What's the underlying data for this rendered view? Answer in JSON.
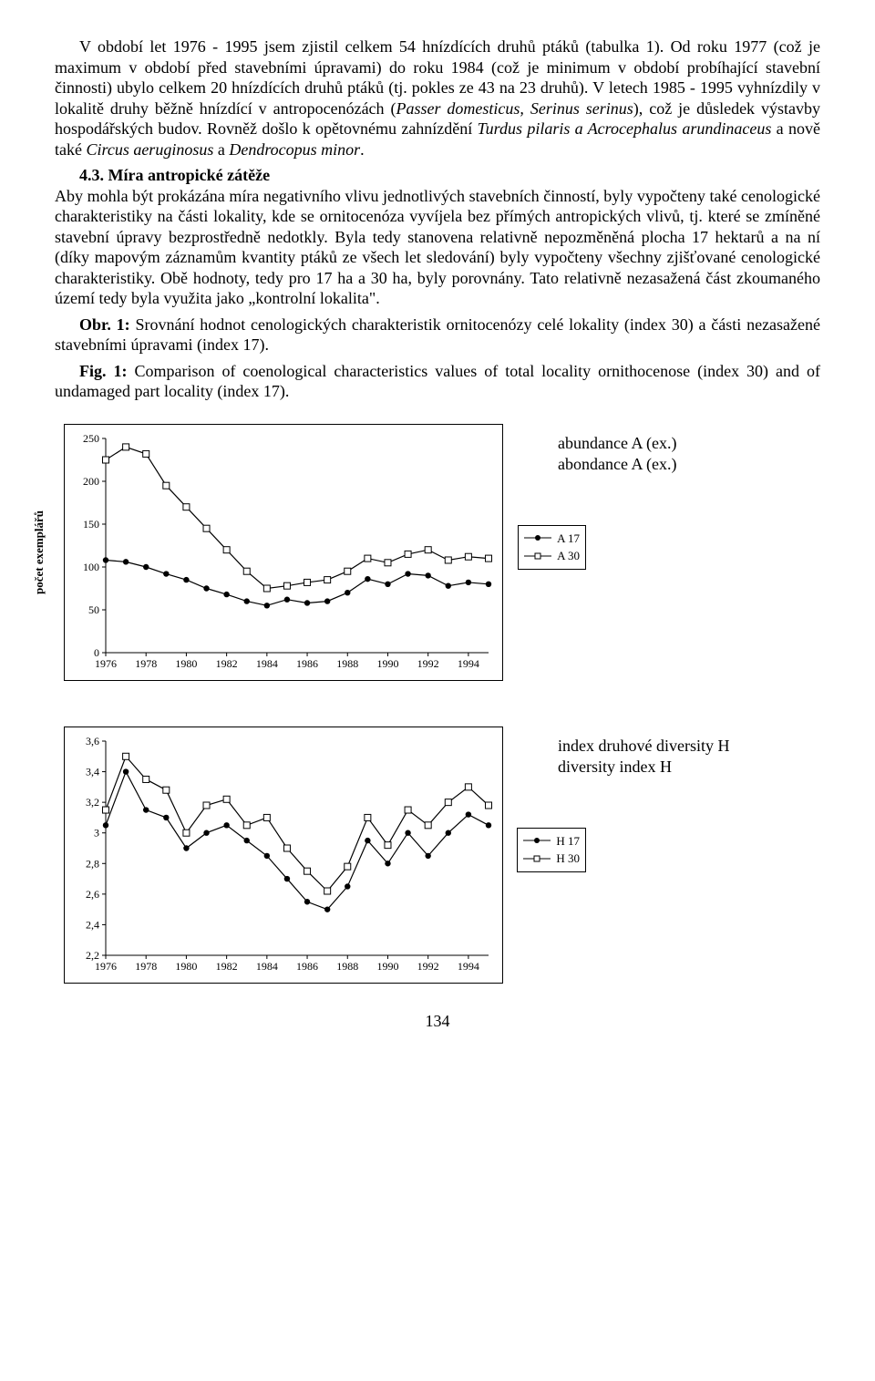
{
  "paragraphs": {
    "p1a": "V období let 1976 - 1995 jsem zjistil celkem 54 hnízdících druhů ptáků (tabulka 1). Od roku 1977 (což je maximum v období před stavebními úpravami) do roku 1984 (což je minimum v období probíhající stavební činnosti) ubylo celkem 20 hnízdících druhů ptáků (tj. pokles ze 43 na 23 druhů). V letech 1985 - 1995 vyhnízdily v lokalitě druhy běžně hnízdící v antropocenózách (",
    "p1b": "Passer domesticus, Serinus serinus",
    "p1c": "), což je důsledek výstavby hospodářských budov. Rovněž došlo k opětovnému zahnízdění ",
    "p1d": "Turdus pilaris a Acrocephalus arundinaceus",
    "p1e": " a nově také ",
    "p1f": "Circus aeruginosus",
    "p1g": " a ",
    "p1h": "Dendrocopus minor",
    "p1i": ".",
    "sec_title": "4.3. Míra antropické zátěže",
    "p2": "Aby mohla být prokázána míra negativního vlivu jednotlivých stavebních činností, byly vypočteny také cenologické charakteristiky na části lokality, kde se ornitocenóza vyvíjela bez přímých antropických vlivů, tj. které se zmíněné stavební úpravy bezprostředně nedotkly. Byla tedy stanovena relativně nepozměněná plocha 17 hektarů a na ní (díky mapovým záznamům kvantity ptáků ze všech let sledování) byly vypočteny všechny zjišťované cenologické charakteristiky. Obě hodnoty, tedy pro 17 ha a 30 ha, byly porovnány. Tato relativně nezasažená část zkoumaného území tedy byla využita jako „kontrolní lokalita\".",
    "obr_label": "Obr. 1:",
    "obr_text": " Srovnání hodnot cenologických charakteristik ornitocenózy celé lokality (index 30) a části nezasažené stavebními úpravami (index 17).",
    "fig_label": "Fig. 1:",
    "fig_text": " Comparison of coenological characteristics values of total locality ornithocenose (index 30) and of undamaged part locality (index 17).",
    "cap1a": "abundance A (ex.)",
    "cap1b": "abondance A (ex.)",
    "cap2a": "index druhové diversity H",
    "cap2b": "diversity index H",
    "page_num": "134"
  },
  "chart1": {
    "type": "line",
    "ylabel": "počet exemplářů",
    "ylim": [
      0,
      250
    ],
    "ytick_step": 50,
    "xticks": [
      1976,
      1978,
      1980,
      1982,
      1984,
      1986,
      1988,
      1990,
      1992,
      1994
    ],
    "years": [
      1976,
      1977,
      1978,
      1979,
      1980,
      1981,
      1982,
      1983,
      1984,
      1985,
      1986,
      1987,
      1988,
      1989,
      1990,
      1991,
      1992,
      1993,
      1994,
      1995
    ],
    "series": [
      {
        "name": "A 17",
        "marker": "circle",
        "color": "#000000",
        "values": [
          108,
          106,
          100,
          92,
          85,
          75,
          68,
          60,
          55,
          62,
          58,
          60,
          70,
          86,
          80,
          92,
          90,
          78,
          82,
          80
        ]
      },
      {
        "name": "A 30",
        "marker": "square",
        "color": "#000000",
        "values": [
          225,
          240,
          232,
          195,
          170,
          145,
          120,
          95,
          75,
          78,
          82,
          85,
          95,
          110,
          105,
          115,
          120,
          108,
          112,
          110
        ]
      }
    ],
    "label_fontsize": 12,
    "line_color": "#000000",
    "background": "#ffffff"
  },
  "chart2": {
    "type": "line",
    "ylim": [
      2.2,
      3.6
    ],
    "yticks": [
      2.2,
      2.4,
      2.6,
      2.8,
      3.0,
      3.2,
      3.4,
      3.6
    ],
    "ytick_labels": [
      "2,2",
      "2,4",
      "2,6",
      "2,8",
      "3",
      "3,2",
      "3,4",
      "3,6"
    ],
    "xticks": [
      1976,
      1978,
      1980,
      1982,
      1984,
      1986,
      1988,
      1990,
      1992,
      1994
    ],
    "years": [
      1976,
      1977,
      1978,
      1979,
      1980,
      1981,
      1982,
      1983,
      1984,
      1985,
      1986,
      1987,
      1988,
      1989,
      1990,
      1991,
      1992,
      1993,
      1994,
      1995
    ],
    "series": [
      {
        "name": "H 17",
        "marker": "circle",
        "color": "#000000",
        "values": [
          3.05,
          3.4,
          3.15,
          3.1,
          2.9,
          3.0,
          3.05,
          2.95,
          2.85,
          2.7,
          2.55,
          2.5,
          2.65,
          2.95,
          2.8,
          3.0,
          2.85,
          3.0,
          3.12,
          3.05
        ]
      },
      {
        "name": "H 30",
        "marker": "square",
        "color": "#000000",
        "values": [
          3.15,
          3.5,
          3.35,
          3.28,
          3.0,
          3.18,
          3.22,
          3.05,
          3.1,
          2.9,
          2.75,
          2.62,
          2.78,
          3.1,
          2.92,
          3.15,
          3.05,
          3.2,
          3.3,
          3.18
        ]
      }
    ],
    "label_fontsize": 12,
    "line_color": "#000000",
    "background": "#ffffff"
  }
}
